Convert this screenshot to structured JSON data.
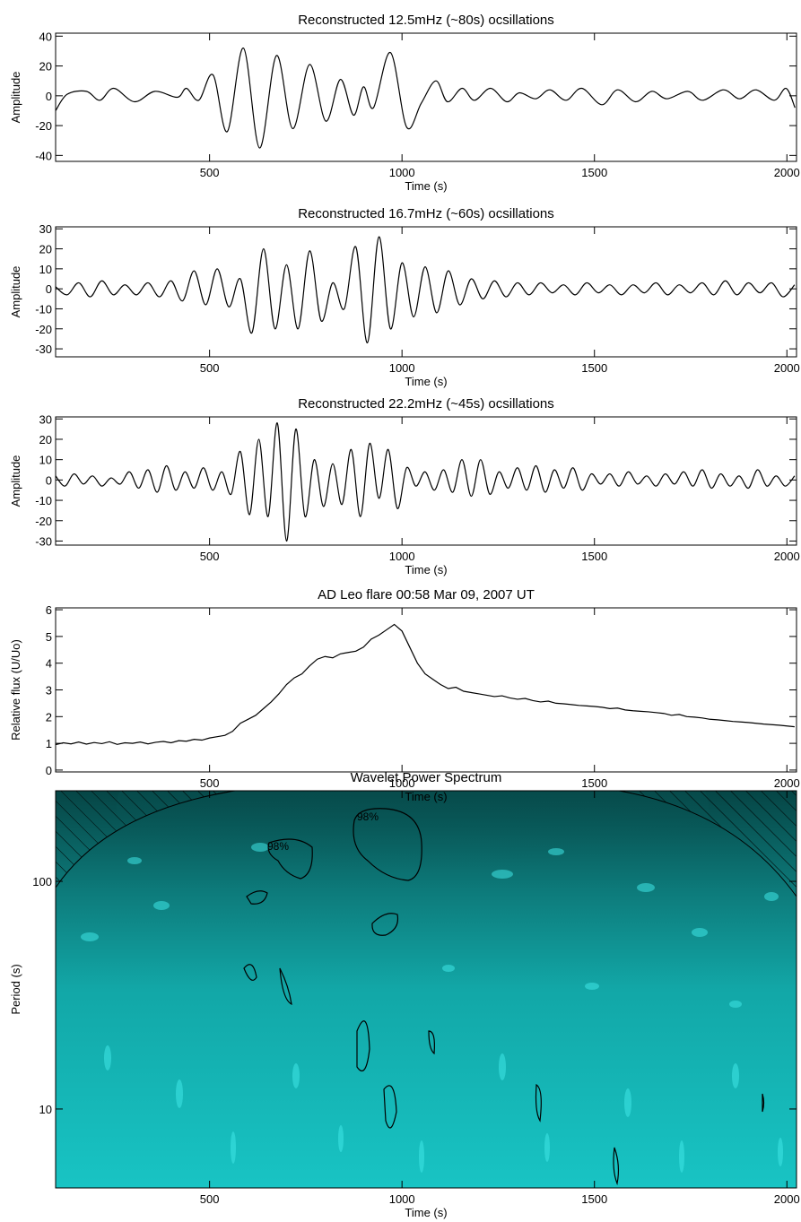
{
  "chart_data": [
    {
      "type": "line",
      "title": "Reconstructed 12.5mHz (~80s) ocsillations",
      "xlabel": "Time (s)",
      "ylabel": "Amplitude",
      "color": "#000000",
      "xlim": [
        100,
        2025
      ],
      "xticks": [
        500,
        1000,
        1500,
        2000
      ],
      "ylim": [
        -44,
        42
      ],
      "yticks": [
        -40,
        -20,
        0,
        20,
        40
      ],
      "x": [
        100,
        130,
        180,
        215,
        251,
        305,
        358,
        416,
        440,
        472,
        509,
        546,
        588,
        630,
        674,
        716,
        760,
        802,
        840,
        874,
        900,
        926,
        970,
        1012,
        1050,
        1088,
        1118,
        1156,
        1188,
        1230,
        1272,
        1305,
        1347,
        1384,
        1426,
        1467,
        1519,
        1560,
        1607,
        1649,
        1688,
        1742,
        1781,
        1835,
        1877,
        1919,
        1967,
        1998,
        2021
      ],
      "values": [
        -10,
        1,
        3,
        -3,
        5,
        -4,
        3,
        -1,
        5,
        -3,
        14,
        -24,
        32,
        -35,
        27,
        -22,
        21,
        -17,
        11,
        -13,
        6,
        -8,
        29,
        -21,
        -5,
        10,
        -4,
        5,
        -3,
        5,
        -4,
        2,
        -2,
        4,
        -3,
        5,
        -6,
        4,
        -4,
        3,
        -2,
        3,
        -3,
        4,
        -2,
        4,
        -3,
        5,
        -8
      ]
    },
    {
      "type": "line",
      "title": "Reconstructed 16.7mHz (~60s) ocsillations",
      "xlabel": "Time (s)",
      "ylabel": "Amplitude",
      "color": "#000000",
      "xlim": [
        100,
        2025
      ],
      "xticks": [
        500,
        1000,
        1500,
        2000
      ],
      "ylim": [
        -34,
        31
      ],
      "yticks": [
        -30,
        -20,
        -10,
        0,
        10,
        20,
        30
      ],
      "x": [
        100,
        130,
        160,
        190,
        220,
        250,
        280,
        310,
        340,
        370,
        400,
        430,
        460,
        490,
        520,
        550,
        580,
        610,
        640,
        670,
        700,
        730,
        760,
        790,
        820,
        850,
        880,
        910,
        940,
        970,
        1000,
        1030,
        1060,
        1090,
        1120,
        1150,
        1180,
        1210,
        1240,
        1270,
        1300,
        1330,
        1360,
        1390,
        1420,
        1450,
        1480,
        1510,
        1540,
        1570,
        1600,
        1630,
        1660,
        1690,
        1720,
        1750,
        1780,
        1810,
        1840,
        1870,
        1900,
        1930,
        1960,
        1990,
        2020
      ],
      "values": [
        1,
        -3,
        3,
        -4,
        4,
        -3,
        2,
        -3,
        3,
        -4,
        4,
        -6,
        9,
        -8,
        10,
        -9,
        5,
        -22,
        20,
        -20,
        12,
        -20,
        19,
        -16,
        3,
        -10,
        21,
        -27,
        26,
        -20,
        13,
        -14,
        11,
        -12,
        9,
        -8,
        5,
        -5,
        4,
        -4,
        3,
        -3,
        3,
        -2,
        2,
        -3,
        3,
        -2,
        2,
        -3,
        2,
        -2,
        3,
        -3,
        2,
        -2,
        3,
        -3,
        4,
        -3,
        3,
        -2,
        3,
        -4,
        2
      ]
    },
    {
      "type": "line",
      "title": "Reconstructed 22.2mHz (~45s) ocsillations",
      "xlabel": "Time (s)",
      "ylabel": "Amplitude",
      "color": "#000000",
      "xlim": [
        100,
        2025
      ],
      "xticks": [
        500,
        1000,
        1500,
        2000
      ],
      "ylim": [
        -32,
        31
      ],
      "yticks": [
        -30,
        -20,
        -10,
        0,
        10,
        20,
        30
      ],
      "x": [
        100,
        124,
        148,
        172,
        196,
        220,
        244,
        268,
        292,
        316,
        340,
        364,
        388,
        412,
        436,
        460,
        484,
        508,
        532,
        556,
        580,
        604,
        628,
        652,
        676,
        700,
        724,
        748,
        772,
        796,
        820,
        844,
        868,
        892,
        916,
        940,
        964,
        988,
        1012,
        1036,
        1060,
        1084,
        1108,
        1132,
        1156,
        1180,
        1204,
        1228,
        1252,
        1276,
        1300,
        1324,
        1348,
        1372,
        1396,
        1420,
        1444,
        1468,
        1492,
        1516,
        1540,
        1564,
        1588,
        1612,
        1636,
        1660,
        1684,
        1708,
        1732,
        1756,
        1780,
        1804,
        1828,
        1852,
        1876,
        1900,
        1924,
        1948,
        1972,
        1996,
        2020
      ],
      "values": [
        2,
        -3,
        3,
        -2,
        2,
        -3,
        1,
        -2,
        4,
        -4,
        5,
        -6,
        7,
        -5,
        4,
        -4,
        6,
        -5,
        4,
        -7,
        14,
        -17,
        20,
        -18,
        28,
        -30,
        25,
        -18,
        10,
        -13,
        8,
        -12,
        15,
        -18,
        18,
        -9,
        15,
        -14,
        6,
        -3,
        4,
        -5,
        5,
        -6,
        10,
        -8,
        10,
        -7,
        4,
        -4,
        6,
        -5,
        7,
        -6,
        5,
        -4,
        6,
        -5,
        3,
        -2,
        3,
        -3,
        4,
        -2,
        2,
        -3,
        3,
        -2,
        4,
        -3,
        5,
        -4,
        3,
        -3,
        2,
        -4,
        5,
        -3,
        2,
        -3,
        2
      ]
    },
    {
      "type": "step",
      "title": "AD Leo flare 00:58 Mar 09, 2007 UT",
      "xlabel": "Time (s)",
      "ylabel": "Relative flux (U/Uo)",
      "color": "#000000",
      "xlim": [
        100,
        2025
      ],
      "xticks": [
        500,
        1000,
        1500,
        2000
      ],
      "ylim": [
        -0.07,
        6.07
      ],
      "yticks": [
        0,
        1,
        2,
        3,
        4,
        5,
        6
      ],
      "x": [
        100,
        120,
        140,
        160,
        180,
        200,
        220,
        240,
        260,
        280,
        300,
        320,
        340,
        360,
        380,
        400,
        420,
        440,
        460,
        480,
        500,
        520,
        540,
        560,
        580,
        600,
        620,
        640,
        660,
        680,
        700,
        720,
        740,
        760,
        780,
        800,
        820,
        840,
        860,
        880,
        900,
        920,
        940,
        960,
        980,
        1000,
        1020,
        1040,
        1060,
        1080,
        1100,
        1120,
        1140,
        1160,
        1180,
        1200,
        1220,
        1240,
        1260,
        1280,
        1300,
        1320,
        1340,
        1360,
        1380,
        1400,
        1420,
        1440,
        1460,
        1480,
        1500,
        1520,
        1540,
        1560,
        1580,
        1600,
        1620,
        1640,
        1660,
        1680,
        1700,
        1720,
        1740,
        1760,
        1780,
        1800,
        1820,
        1840,
        1860,
        1880,
        1900,
        1920,
        1940,
        1960,
        1980,
        2000,
        2020
      ],
      "values": [
        0.95,
        1.02,
        0.98,
        1.05,
        0.97,
        1.03,
        0.99,
        1.06,
        0.96,
        1.02,
        1.0,
        1.05,
        0.98,
        1.04,
        1.07,
        1.02,
        1.1,
        1.08,
        1.15,
        1.12,
        1.2,
        1.25,
        1.3,
        1.45,
        1.75,
        1.9,
        2.05,
        2.3,
        2.55,
        2.85,
        3.2,
        3.45,
        3.6,
        3.9,
        4.15,
        4.25,
        4.2,
        4.35,
        4.4,
        4.45,
        4.6,
        4.9,
        5.05,
        5.25,
        5.45,
        5.2,
        4.6,
        4.0,
        3.6,
        3.4,
        3.2,
        3.05,
        3.1,
        2.95,
        2.9,
        2.85,
        2.8,
        2.75,
        2.78,
        2.7,
        2.65,
        2.68,
        2.6,
        2.55,
        2.58,
        2.5,
        2.48,
        2.45,
        2.42,
        2.4,
        2.38,
        2.35,
        2.3,
        2.32,
        2.25,
        2.22,
        2.2,
        2.18,
        2.15,
        2.12,
        2.05,
        2.08,
        2.0,
        1.98,
        1.95,
        1.9,
        1.88,
        1.85,
        1.82,
        1.8,
        1.78,
        1.75,
        1.72,
        1.7,
        1.68,
        1.65,
        1.62
      ]
    },
    {
      "type": "wavelet",
      "title": "Wavelet Power Spectrum",
      "xlabel": "Time (s)",
      "ylabel": "Period (s)",
      "xlim": [
        100,
        2025
      ],
      "xticks": [
        500,
        1000,
        1500,
        2000
      ],
      "ylim": [
        4.5,
        250
      ],
      "yticks": [
        10,
        100
      ],
      "ylog": true,
      "annotations": [
        "98%",
        "98%"
      ]
    }
  ]
}
